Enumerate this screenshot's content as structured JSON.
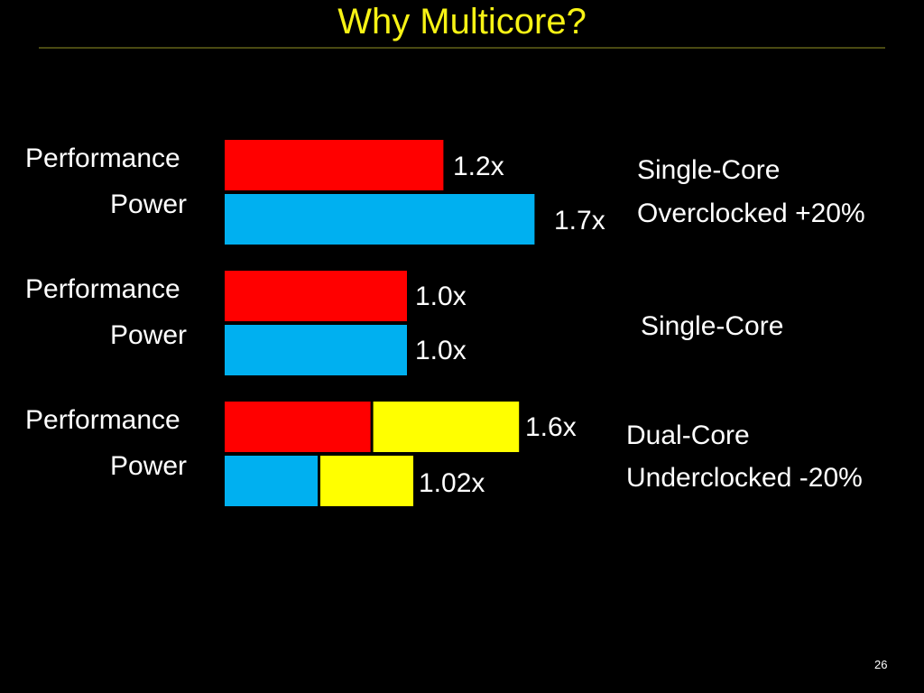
{
  "slide": {
    "title": "Why Multicore?",
    "page_number": "26"
  },
  "colors": {
    "background": "#000000",
    "title": "#f7f315",
    "rule": "#4a4a12",
    "performance": "#ff0000",
    "power": "#00b0f0",
    "second_core": "#ffff00",
    "text": "#ffffff"
  },
  "chart_data": {
    "type": "bar",
    "orientation": "horizontal",
    "stacked": true,
    "title": "Why Multicore?",
    "grid": false,
    "legend": "none",
    "xlim": [
      0,
      2.0
    ],
    "groups": [
      {
        "note": [
          "Single-Core",
          "Overclocked +20%"
        ],
        "rows": [
          {
            "label": "Performance",
            "metric": "performance",
            "segments": [
              1.2
            ],
            "value_label": "1.2x"
          },
          {
            "label": "Power",
            "metric": "power",
            "segments": [
              1.7
            ],
            "value_label": "1.7x"
          }
        ]
      },
      {
        "note": [
          "Single-Core"
        ],
        "rows": [
          {
            "label": "Performance",
            "metric": "performance",
            "segments": [
              1.0
            ],
            "value_label": "1.0x"
          },
          {
            "label": "Power",
            "metric": "power",
            "segments": [
              1.0
            ],
            "value_label": "1.0x"
          }
        ]
      },
      {
        "note": [
          "Dual-Core",
          "Underclocked -20%"
        ],
        "rows": [
          {
            "label": "Performance",
            "metric": "performance",
            "segments": [
              0.8,
              0.8
            ],
            "value_label": "1.6x"
          },
          {
            "label": "Power",
            "metric": "power",
            "segments": [
              0.51,
              0.51
            ],
            "value_label": "1.02x"
          }
        ]
      }
    ]
  }
}
